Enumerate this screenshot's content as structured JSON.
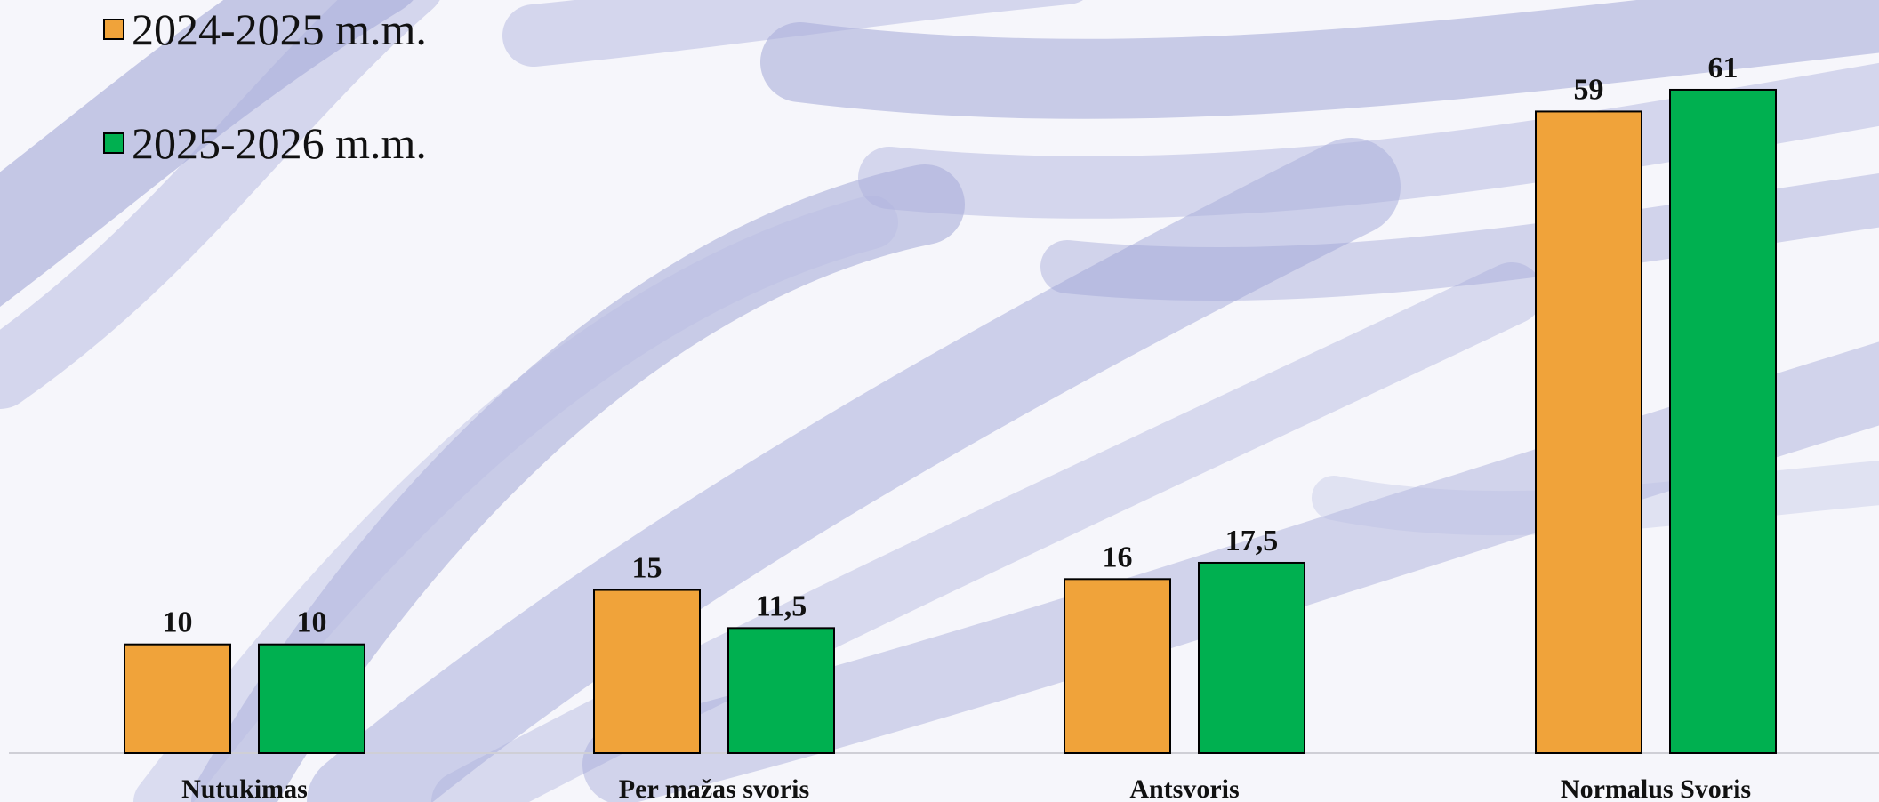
{
  "chart_data": {
    "type": "bar",
    "categories": [
      "Nutukimas",
      "Per mažas svoris",
      "Antsvoris",
      "Normalus Svoris"
    ],
    "series": [
      {
        "name": "2024-2025 m.m.",
        "values": [
          10,
          15,
          16,
          59
        ],
        "value_labels": [
          "10",
          "15",
          "16",
          "59"
        ],
        "color": "#f0a33a"
      },
      {
        "name": "2025-2026 m.m.",
        "values": [
          10,
          11.5,
          17.5,
          61
        ],
        "value_labels": [
          "10",
          "11,5",
          "17,5",
          "61"
        ],
        "color": "#00b050"
      }
    ],
    "ylim": [
      0,
      61
    ],
    "grid": false,
    "legend_position": "top-left",
    "title": "",
    "xlabel": "",
    "ylabel": ""
  },
  "legend": {
    "series_1_label": "2024-2025 m.m.",
    "series_2_label": "2025-2026 m.m."
  },
  "colors": {
    "background": "#f6f6fb",
    "brush_stroke": "#9aa0d4"
  }
}
